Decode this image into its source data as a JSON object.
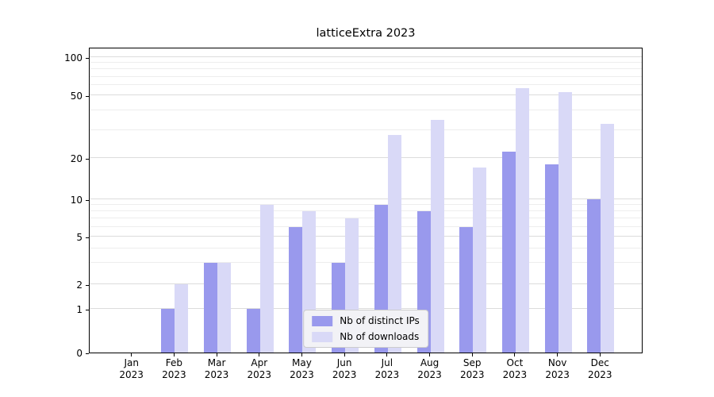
{
  "chart_data": {
    "type": "bar",
    "title": "latticeExtra 2023",
    "categories": [
      "Jan 2023",
      "Feb 2023",
      "Mar 2023",
      "Apr 2023",
      "May 2023",
      "Jun 2023",
      "Jul 2023",
      "Aug 2023",
      "Sep 2023",
      "Oct 2023",
      "Nov 2023",
      "Dec 2023"
    ],
    "series": [
      {
        "name": "Nb of distinct IPs",
        "color": "#9999ed",
        "values": [
          0,
          1,
          3,
          1,
          6,
          3,
          9,
          8,
          6,
          22,
          18,
          10
        ]
      },
      {
        "name": "Nb of downloads",
        "color": "#d9d9f7",
        "values": [
          0,
          2,
          3,
          9,
          8,
          7,
          28,
          35,
          17,
          57,
          53,
          33
        ]
      }
    ],
    "ylabel": "",
    "xlabel": "",
    "yscale": "log with zero baseline",
    "ylim": [
      0,
      100
    ],
    "yticks": [
      0,
      1,
      2,
      5,
      10,
      20,
      50,
      100
    ],
    "yticks_minor": [
      3,
      4,
      6,
      7,
      8,
      9,
      30,
      40,
      60,
      70,
      80,
      90
    ],
    "grid": "horizontal major+minor",
    "legend_position": "lower center"
  },
  "colors": {
    "background": "#ffffff",
    "axis": "#000000",
    "grid_major": "#dcdcdc",
    "grid_minor": "#ededed",
    "legend_bg": "#f2f2f6",
    "legend_border": "#cccccc"
  }
}
